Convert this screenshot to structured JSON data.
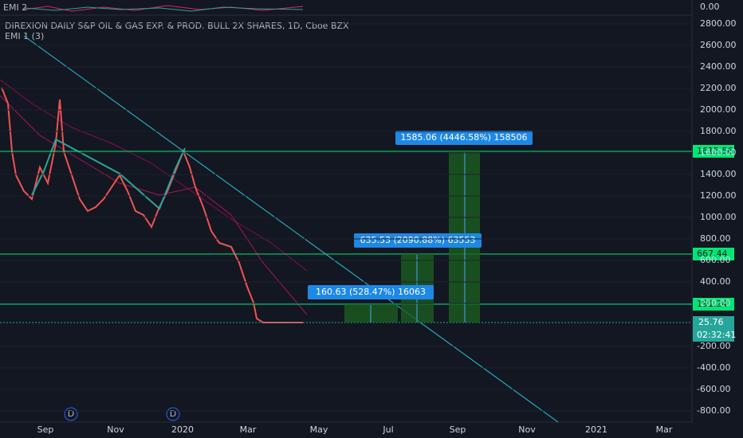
{
  "header": {
    "indicator_top": "EMI 2",
    "title": "DIREXION DAILY S&P OIL & GAS EXP. & PROD. BULL 2X SHARES, 1D, Cboe BZX",
    "indicator_main": "EMI 1 (3)"
  },
  "price_axis": {
    "top_pane": "0.00",
    "upper": [
      "2800.00",
      "2600.00",
      "2400.00",
      "2200.00",
      "2000.00",
      "1800.00",
      "1600.00",
      "1400.00",
      "1200.00",
      "1000.00",
      "800.00",
      "600.00",
      "400.00",
      "200.00"
    ],
    "lower": [
      "-200.00",
      "-400.00",
      "-600.00",
      "-800.00"
    ]
  },
  "levels": [
    "1615.56",
    "667.44",
    "191.24",
    "25.76"
  ],
  "countdown": "02:32:41",
  "measurements": [
    "160.63 (528.47%) 16063",
    "635.53 (2090.88%) 63553",
    "1585.06 (4446.58%) 158506"
  ],
  "time_axis": [
    "Sep",
    "Nov",
    "2020",
    "Mar",
    "May",
    "Jul",
    "Sep",
    "Nov",
    "2021",
    "Mar"
  ],
  "markers": [
    "D",
    "D"
  ]
}
